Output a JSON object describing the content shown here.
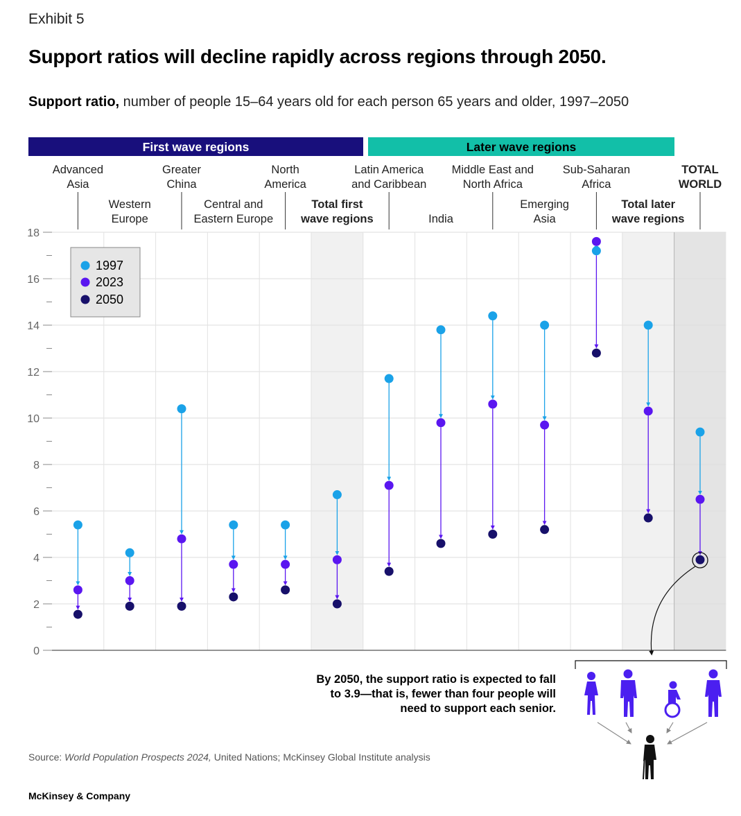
{
  "exhibit": "Exhibit 5",
  "title": "Support ratios will decline rapidly across regions through 2050.",
  "subtitle_bold": "Support ratio,",
  "subtitle_rest": " number of people 15–64 years old for each person 65 years and older, 1997–2050",
  "source_label": "Source: ",
  "source_italic": "World Population Prospects 2024,",
  "source_rest": " United Nations; McKinsey Global Institute analysis",
  "brand": "McKinsey & Company",
  "note": "By 2050, the support ratio is expected to fall to 3.9—that is, fewer than four people will need to support each senior.",
  "colors": {
    "y1997": "#1aa2e8",
    "y2023": "#5a16f0",
    "y2050": "#17106a",
    "first_wave": "#180f7c",
    "later_wave": "#12bfa8",
    "people": "#4b1ff0",
    "senior": "#111111"
  },
  "chart_data": {
    "type": "dot",
    "title": "Support ratio",
    "ylim": [
      0,
      18
    ],
    "yticks": [
      0,
      2,
      4,
      6,
      8,
      10,
      12,
      14,
      16,
      18
    ],
    "groups": [
      {
        "label": "First wave regions",
        "span": [
          0,
          5
        ]
      },
      {
        "label": "Later wave regions",
        "span": [
          6,
          11
        ]
      }
    ],
    "legend": [
      "1997",
      "2023",
      "2050"
    ],
    "legend_position": "top-left",
    "categories": [
      {
        "name": "Advanced Asia",
        "lines": [
          "Advanced",
          "Asia"
        ],
        "row": 0,
        "bold": false,
        "shade": "none",
        "v1997": 5.4,
        "v2023": 2.6,
        "v2050": 1.55
      },
      {
        "name": "Western Europe",
        "lines": [
          "Western",
          "Europe"
        ],
        "row": 1,
        "bold": false,
        "shade": "none",
        "v1997": 4.2,
        "v2023": 3.0,
        "v2050": 1.9
      },
      {
        "name": "Greater China",
        "lines": [
          "Greater",
          "China"
        ],
        "row": 0,
        "bold": false,
        "shade": "none",
        "v1997": 10.4,
        "v2023": 4.8,
        "v2050": 1.9
      },
      {
        "name": "Central and Eastern Europe",
        "lines": [
          "Central and",
          "Eastern Europe"
        ],
        "row": 1,
        "bold": false,
        "shade": "none",
        "v1997": 5.4,
        "v2023": 3.7,
        "v2050": 2.3
      },
      {
        "name": "North America",
        "lines": [
          "North",
          "America"
        ],
        "row": 0,
        "bold": false,
        "shade": "none",
        "v1997": 5.4,
        "v2023": 3.7,
        "v2050": 2.6
      },
      {
        "name": "Total first wave regions",
        "lines": [
          "Total  first",
          "wave regions"
        ],
        "row": 1,
        "bold": true,
        "shade": "light",
        "v1997": 6.7,
        "v2023": 3.9,
        "v2050": 2.0
      },
      {
        "name": "Latin America and Caribbean",
        "lines": [
          "Latin America",
          "and Caribbean"
        ],
        "row": 0,
        "bold": false,
        "shade": "none",
        "v1997": 11.7,
        "v2023": 7.1,
        "v2050": 3.4
      },
      {
        "name": "India",
        "lines": [
          "India"
        ],
        "row": 1,
        "bold": false,
        "shade": "none",
        "v1997": 13.8,
        "v2023": 9.8,
        "v2050": 4.6
      },
      {
        "name": "Middle East and North Africa",
        "lines": [
          "Middle East and",
          "North Africa"
        ],
        "row": 0,
        "bold": false,
        "shade": "none",
        "v1997": 14.4,
        "v2023": 10.6,
        "v2050": 5.0
      },
      {
        "name": "Emerging Asia",
        "lines": [
          "Emerging",
          "Asia"
        ],
        "row": 1,
        "bold": false,
        "shade": "none",
        "v1997": 14.0,
        "v2023": 9.7,
        "v2050": 5.2
      },
      {
        "name": "Sub-Saharan Africa",
        "lines": [
          "Sub-Saharan",
          "Africa"
        ],
        "row": 0,
        "bold": false,
        "shade": "none",
        "v1997": 17.2,
        "v2023": 17.6,
        "v2050": 12.8
      },
      {
        "name": "Total later wave regions",
        "lines": [
          "Total later",
          "wave regions"
        ],
        "row": 1,
        "bold": true,
        "shade": "light",
        "v1997": 14.0,
        "v2023": 10.3,
        "v2050": 5.7
      },
      {
        "name": "TOTAL WORLD",
        "lines": [
          "TOTAL",
          "WORLD"
        ],
        "row": 0,
        "bold": true,
        "shade": "dark",
        "v1997": 9.4,
        "v2023": 6.5,
        "v2050": 3.9
      }
    ]
  }
}
